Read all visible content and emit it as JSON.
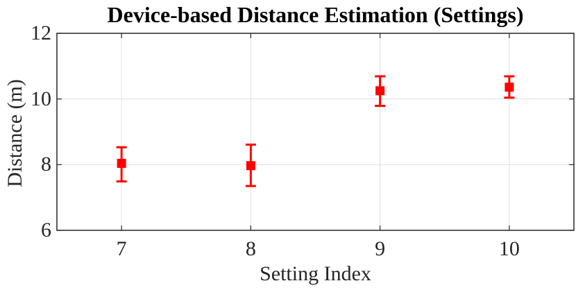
{
  "figure": {
    "title": "Device-based Distance Estimation (Settings)",
    "xlabel": "Setting Index",
    "ylabel": "Distance (m)"
  },
  "chart_data": {
    "type": "scatter",
    "subtype": "errorbar",
    "title": "Device-based Distance Estimation (Settings)",
    "xlabel": "Setting Index",
    "ylabel": "Distance (m)",
    "xlim": [
      6.5,
      10.5
    ],
    "ylim": [
      6,
      12
    ],
    "xticks": [
      7,
      8,
      9,
      10
    ],
    "yticks": [
      6,
      8,
      10,
      12
    ],
    "grid": true,
    "legend": "none",
    "marker": "filled-square",
    "points": [
      {
        "x": 7,
        "y": 8.04,
        "y_lower": 7.49,
        "y_upper": 8.53
      },
      {
        "x": 8,
        "y": 7.97,
        "y_lower": 7.35,
        "y_upper": 8.61
      },
      {
        "x": 9,
        "y": 10.25,
        "y_lower": 9.79,
        "y_upper": 10.69
      },
      {
        "x": 10,
        "y": 10.36,
        "y_lower": 10.04,
        "y_upper": 10.69
      }
    ]
  },
  "colors": {
    "series": "#FF0000",
    "grid": "#E0E0E0",
    "axis": "#262626",
    "title_text": "#000000",
    "tick_text": "#262626",
    "background": "#FFFFFF"
  }
}
